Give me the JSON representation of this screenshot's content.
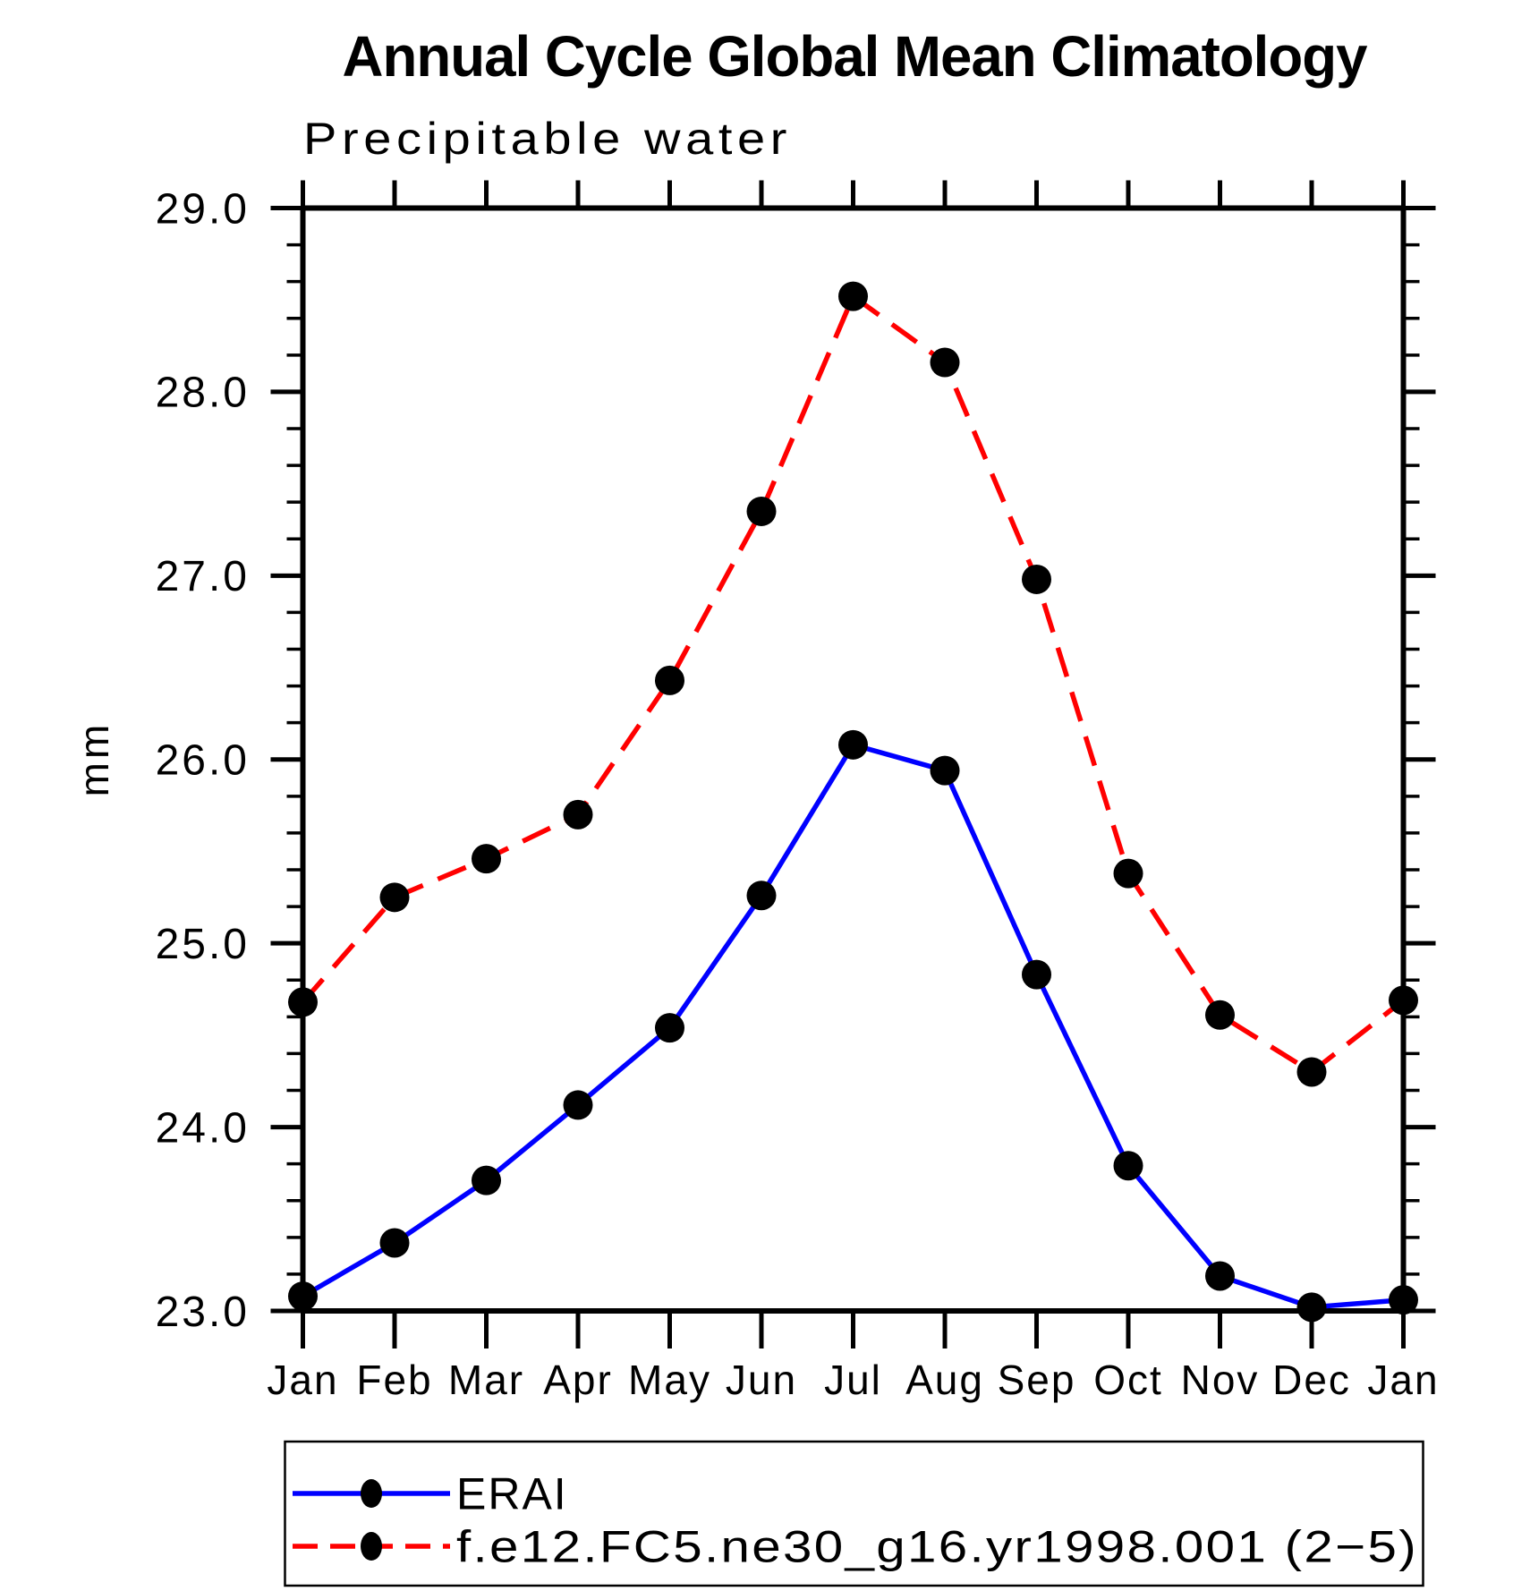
{
  "page": {
    "background_color": "#ffffff",
    "accent_blue": "#0000ff",
    "accent_red": "#ff0000",
    "axis_color": "#000000"
  },
  "chart_data": {
    "type": "line",
    "title": "Annual Cycle Global Mean Climatology",
    "subtitle": "Precipitable water",
    "ylabel": "mm",
    "xlabel": "",
    "ylim": [
      23.0,
      29.0
    ],
    "ytick_values": [
      23,
      24,
      25,
      26,
      27,
      28,
      29
    ],
    "ytick_labels": [
      "23.0",
      "24.0",
      "25.0",
      "26.0",
      "27.0",
      "28.0",
      "29.0"
    ],
    "ytick_minor_step": 0.2,
    "grid": false,
    "legend_position": "bottom-left",
    "categories": [
      "Jan",
      "Feb",
      "Mar",
      "Apr",
      "May",
      "Jun",
      "Jul",
      "Aug",
      "Sep",
      "Oct",
      "Nov",
      "Dec",
      "Jan"
    ],
    "series": [
      {
        "name": "ERAI",
        "color": "#0000ff",
        "line_style": "solid",
        "marker": "filled-circle",
        "marker_color": "#000000",
        "values": [
          23.08,
          23.37,
          23.71,
          24.12,
          24.54,
          25.26,
          26.08,
          25.94,
          24.83,
          23.79,
          23.19,
          23.02,
          23.06
        ]
      },
      {
        "name": "f.e12.FC5.ne30_g16.yr1998.001 (2−5)",
        "color": "#ff0000",
        "line_style": "dashed",
        "marker": "filled-circle",
        "marker_color": "#000000",
        "values": [
          24.68,
          25.25,
          25.46,
          25.7,
          26.43,
          27.35,
          28.52,
          28.16,
          26.98,
          25.38,
          24.61,
          24.3,
          24.69
        ]
      }
    ]
  }
}
